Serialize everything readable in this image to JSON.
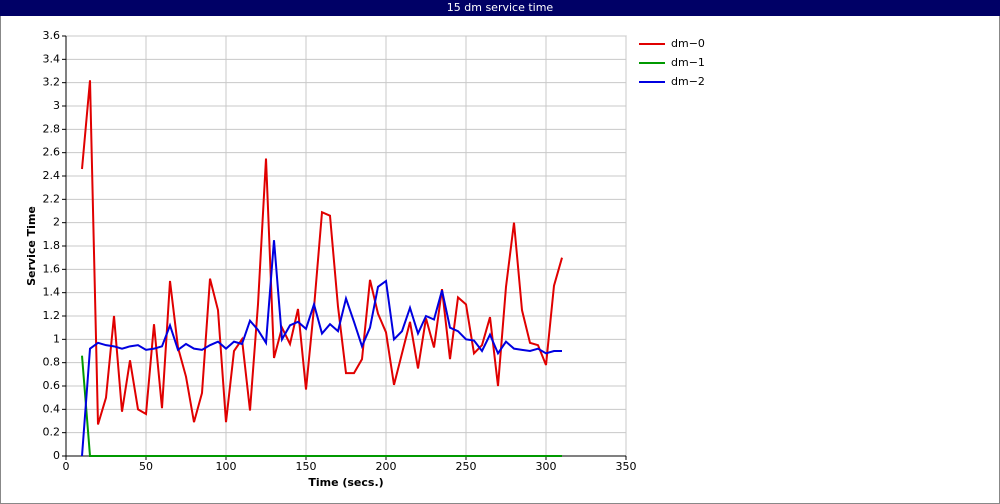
{
  "window_title": "15 dm service time",
  "chart_data": {
    "type": "line",
    "x_label": "Time (secs.)",
    "y_label": "Service Time",
    "xlim": [
      0,
      350
    ],
    "xticks": [
      0,
      50,
      100,
      150,
      200,
      250,
      300,
      350
    ],
    "ylim": [
      0,
      3.6
    ],
    "yticks": [
      0,
      0.2,
      0.4,
      0.6,
      0.8,
      1,
      1.2,
      1.4,
      1.6,
      1.8,
      2,
      2.2,
      2.4,
      2.6,
      2.8,
      3,
      3.2,
      3.4,
      3.6
    ],
    "grid": true,
    "legend": "right",
    "x": [
      10,
      15,
      20,
      25,
      30,
      35,
      40,
      45,
      50,
      55,
      60,
      65,
      70,
      75,
      80,
      85,
      90,
      95,
      100,
      105,
      110,
      115,
      120,
      125,
      130,
      135,
      140,
      145,
      150,
      155,
      160,
      165,
      170,
      175,
      180,
      185,
      190,
      195,
      200,
      205,
      210,
      215,
      220,
      225,
      230,
      235,
      240,
      245,
      250,
      255,
      260,
      265,
      270,
      275,
      280,
      285,
      290,
      295,
      300,
      305,
      310
    ],
    "series": [
      {
        "name": "dm−0",
        "color": "#e00000",
        "values": [
          2.46,
          3.22,
          0.27,
          0.5,
          1.2,
          0.38,
          0.82,
          0.4,
          0.36,
          1.13,
          0.41,
          1.5,
          0.93,
          0.68,
          0.29,
          0.54,
          1.52,
          1.25,
          0.29,
          0.9,
          1.0,
          0.39,
          1.3,
          2.55,
          0.84,
          1.1,
          0.96,
          1.26,
          0.57,
          1.27,
          2.09,
          2.06,
          1.28,
          0.71,
          0.71,
          0.83,
          1.51,
          1.22,
          1.06,
          0.61,
          0.88,
          1.15,
          0.75,
          1.18,
          0.93,
          1.43,
          0.83,
          1.36,
          1.3,
          0.88,
          0.95,
          1.19,
          0.6,
          1.45,
          2.0,
          1.25,
          0.97,
          0.95,
          0.78,
          1.46,
          1.7
        ]
      },
      {
        "name": "dm−1",
        "color": "#009900",
        "values": [
          0.86,
          0,
          0,
          0,
          0,
          0,
          0,
          0,
          0,
          0,
          0,
          0,
          0,
          0,
          0,
          0,
          0,
          0,
          0,
          0,
          0,
          0,
          0,
          0,
          0,
          0,
          0,
          0,
          0,
          0,
          0,
          0,
          0,
          0,
          0,
          0,
          0,
          0,
          0,
          0,
          0,
          0,
          0,
          0,
          0,
          0,
          0,
          0,
          0,
          0,
          0,
          0,
          0,
          0,
          0,
          0,
          0,
          0,
          0,
          0,
          0
        ]
      },
      {
        "name": "dm−2",
        "color": "#0000e0",
        "values": [
          0,
          0.92,
          0.97,
          0.95,
          0.94,
          0.92,
          0.94,
          0.95,
          0.91,
          0.92,
          0.94,
          1.12,
          0.91,
          0.96,
          0.92,
          0.91,
          0.95,
          0.98,
          0.92,
          0.98,
          0.96,
          1.16,
          1.08,
          0.97,
          1.85,
          1.0,
          1.12,
          1.15,
          1.09,
          1.3,
          1.05,
          1.13,
          1.07,
          1.35,
          1.15,
          0.94,
          1.1,
          1.45,
          1.5,
          1.0,
          1.07,
          1.27,
          1.05,
          1.2,
          1.17,
          1.42,
          1.1,
          1.07,
          1.0,
          0.99,
          0.9,
          1.04,
          0.88,
          0.98,
          0.92,
          0.91,
          0.9,
          0.92,
          0.88,
          0.9,
          0.9
        ]
      }
    ]
  }
}
